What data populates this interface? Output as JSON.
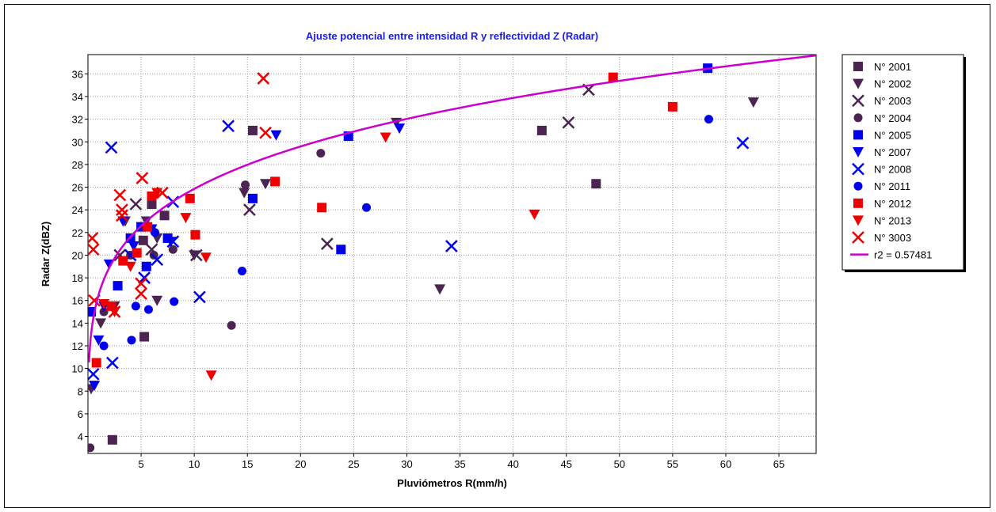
{
  "chart_data": {
    "type": "scatter",
    "title": "Ajuste potencial entre intensidad R y reflectividad Z (Radar)",
    "xlabel": "Pluviómetros R(mm/h)",
    "ylabel": "Radar Z(dBZ)",
    "xlim": [
      0,
      68.5
    ],
    "ylim": [
      2.5,
      37.7
    ],
    "x_ticks": [
      5,
      10,
      15,
      20,
      25,
      30,
      35,
      40,
      45,
      50,
      55,
      60,
      65
    ],
    "y_ticks": [
      4,
      6,
      8,
      10,
      12,
      14,
      16,
      18,
      20,
      22,
      24,
      26,
      28,
      30,
      32,
      34,
      36
    ],
    "grid": true,
    "legend_position": "right",
    "series": [
      {
        "name": "N° 2001",
        "marker": "square",
        "color": "#4b2452",
        "points": [
          [
            2.3,
            3.7
          ],
          [
            5.3,
            12.8
          ],
          [
            15.5,
            31.0
          ],
          [
            42.7,
            31.0
          ],
          [
            47.8,
            26.3
          ],
          [
            7.2,
            23.5
          ],
          [
            5.2,
            21.3
          ],
          [
            6.0,
            24.5
          ]
        ]
      },
      {
        "name": "N° 2002",
        "marker": "triangle-down",
        "color": "#4b2452",
        "points": [
          [
            0.3,
            8.2
          ],
          [
            1.2,
            14.0
          ],
          [
            6.5,
            16.0
          ],
          [
            14.7,
            25.5
          ],
          [
            16.7,
            26.3
          ],
          [
            29.0,
            31.7
          ],
          [
            33.1,
            17.0
          ],
          [
            62.6,
            33.5
          ],
          [
            2.5,
            15.5
          ],
          [
            3.5,
            23.0
          ],
          [
            5.5,
            23.0
          ],
          [
            6.5,
            21.5
          ],
          [
            10.0,
            20.0
          ]
        ]
      },
      {
        "name": "N° 2003",
        "marker": "x",
        "color": "#4b2452",
        "points": [
          [
            15.2,
            24.0
          ],
          [
            22.5,
            21.0
          ],
          [
            45.2,
            31.7
          ],
          [
            47.1,
            34.6
          ],
          [
            10.2,
            20.0
          ],
          [
            6.0,
            20.5
          ],
          [
            4.5,
            24.5
          ],
          [
            3.0,
            20.0
          ]
        ]
      },
      {
        "name": "N° 2004",
        "marker": "circle",
        "color": "#4b2452",
        "points": [
          [
            0.2,
            3.0
          ],
          [
            13.5,
            13.8
          ],
          [
            14.8,
            26.2
          ],
          [
            21.9,
            29.0
          ],
          [
            6.2,
            20.0
          ],
          [
            8.0,
            20.5
          ],
          [
            4.0,
            20.0
          ],
          [
            1.5,
            15.0
          ]
        ]
      },
      {
        "name": "N° 2005",
        "marker": "square",
        "color": "#0000ee",
        "points": [
          [
            58.3,
            36.5
          ],
          [
            24.5,
            30.5
          ],
          [
            15.5,
            25.0
          ],
          [
            23.8,
            20.5
          ],
          [
            0.3,
            15.0
          ],
          [
            2.8,
            17.3
          ],
          [
            4.0,
            21.5
          ],
          [
            5.5,
            19.0
          ],
          [
            7.5,
            21.5
          ],
          [
            5.0,
            22.5
          ]
        ]
      },
      {
        "name": "N° 2007",
        "marker": "triangle-down",
        "color": "#0000ee",
        "points": [
          [
            0.6,
            8.5
          ],
          [
            1.0,
            12.5
          ],
          [
            1.5,
            15.5
          ],
          [
            2.0,
            19.2
          ],
          [
            17.7,
            30.6
          ],
          [
            29.3,
            31.2
          ],
          [
            3.3,
            23.0
          ],
          [
            4.3,
            20.8
          ],
          [
            6.0,
            22.3
          ],
          [
            7.8,
            21.2
          ]
        ]
      },
      {
        "name": "N° 2008",
        "marker": "x",
        "color": "#0000ee",
        "points": [
          [
            2.2,
            29.5
          ],
          [
            13.2,
            31.4
          ],
          [
            10.5,
            16.3
          ],
          [
            34.2,
            20.8
          ],
          [
            61.6,
            29.9
          ],
          [
            2.3,
            10.5
          ],
          [
            0.5,
            9.5
          ],
          [
            4.0,
            20.0
          ],
          [
            5.3,
            18.0
          ],
          [
            6.5,
            19.6
          ],
          [
            8.0,
            24.7
          ],
          [
            8.0,
            21.2
          ]
        ]
      },
      {
        "name": "N° 2011",
        "marker": "circle",
        "color": "#0000ee",
        "points": [
          [
            4.1,
            12.5
          ],
          [
            5.7,
            15.2
          ],
          [
            8.1,
            15.9
          ],
          [
            14.5,
            18.6
          ],
          [
            26.2,
            24.2
          ],
          [
            58.4,
            32.0
          ],
          [
            4.5,
            15.5
          ],
          [
            1.5,
            12.0
          ],
          [
            6.3,
            22.0
          ]
        ]
      },
      {
        "name": "N° 2012",
        "marker": "square",
        "color": "#ee0000",
        "points": [
          [
            0.8,
            10.5
          ],
          [
            2.2,
            15.5
          ],
          [
            3.3,
            19.5
          ],
          [
            4.6,
            20.2
          ],
          [
            5.6,
            22.5
          ],
          [
            6.0,
            25.2
          ],
          [
            9.6,
            25.0
          ],
          [
            10.1,
            21.8
          ],
          [
            17.6,
            26.5
          ],
          [
            22.0,
            24.2
          ],
          [
            49.4,
            35.7
          ],
          [
            55.0,
            33.1
          ]
        ]
      },
      {
        "name": "N° 2013",
        "marker": "triangle-down",
        "color": "#ee0000",
        "points": [
          [
            2.5,
            15.0
          ],
          [
            4.0,
            19.0
          ],
          [
            9.2,
            23.3
          ],
          [
            11.1,
            19.8
          ],
          [
            11.6,
            9.4
          ],
          [
            28.0,
            30.4
          ],
          [
            42.0,
            23.6
          ],
          [
            1.5,
            15.7
          ],
          [
            6.5,
            25.5
          ]
        ]
      },
      {
        "name": "N° 3003",
        "marker": "x",
        "color": "#ee0000",
        "points": [
          [
            0.4,
            21.5
          ],
          [
            0.5,
            20.5
          ],
          [
            0.6,
            16.0
          ],
          [
            3.2,
            24.0
          ],
          [
            3.0,
            25.3
          ],
          [
            5.1,
            26.8
          ],
          [
            5.0,
            16.6
          ],
          [
            5.0,
            17.5
          ],
          [
            7.0,
            25.5
          ],
          [
            16.5,
            35.6
          ],
          [
            16.7,
            30.8
          ],
          [
            3.2,
            23.5
          ],
          [
            2.5,
            15.0
          ]
        ]
      }
    ],
    "fit": {
      "name": "r2 = 0.57481",
      "color": "#cc00cc",
      "equation": "Z = a*R^b",
      "a": 16.5,
      "b": 0.195
    }
  }
}
